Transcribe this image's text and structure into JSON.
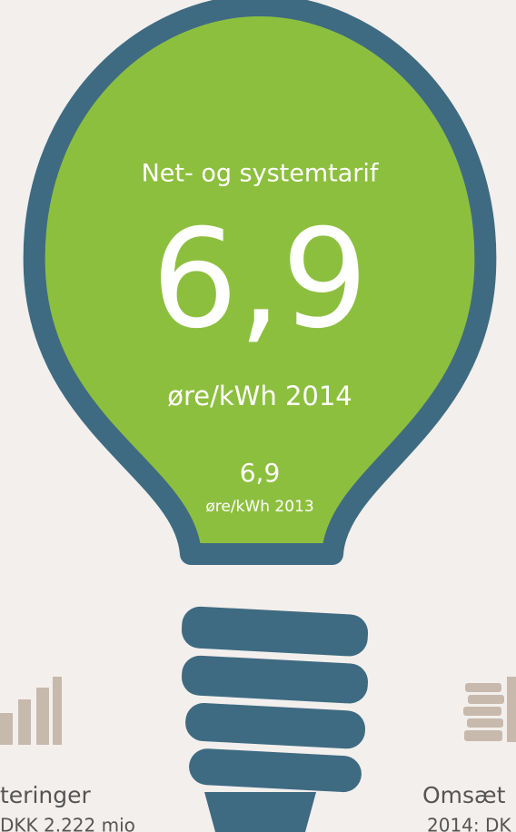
{
  "bulb": {
    "title": "Net- og systemtarif",
    "value": "6,9",
    "unit": "øre/kWh 2014",
    "previous_value": "6,9",
    "previous_unit": "øre/kWh 2013"
  },
  "left_card": {
    "title": "teringer",
    "subtitle": "DKK 2.222 mio"
  },
  "right_card": {
    "title": "Omsæt",
    "subtitle": "2014: DK"
  }
}
